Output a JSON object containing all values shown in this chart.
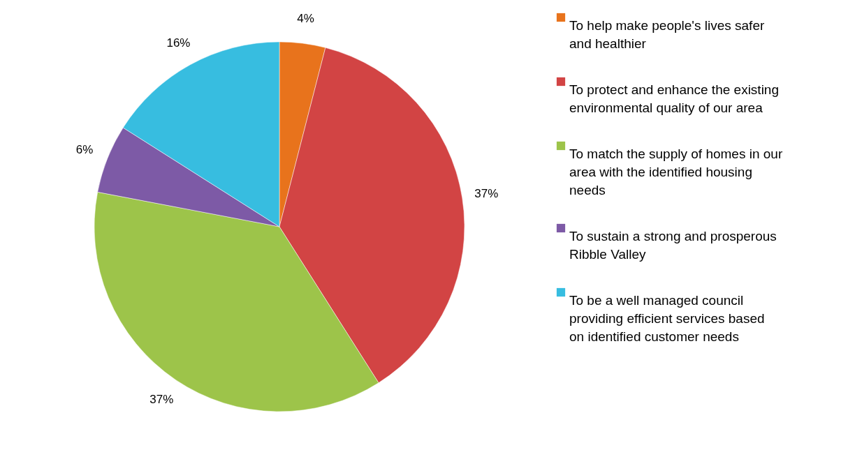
{
  "chart_data": {
    "type": "pie",
    "categories": [
      "To help make people's lives safer and healthier",
      "To protect and enhance the existing environmental quality of our area",
      "To match the supply of homes in our area with the identified housing needs",
      "To sustain a strong and prosperous Ribble Valley",
      "To be a well managed council providing efficient services based on identified customer needs"
    ],
    "values": [
      4,
      37,
      37,
      6,
      16
    ],
    "colors": [
      "#e8731c",
      "#d24444",
      "#9dc44a",
      "#7d5aa6",
      "#37bde0"
    ],
    "value_labels": [
      "4%",
      "37%",
      "37%",
      "6%",
      "16%"
    ],
    "legend": "right"
  }
}
